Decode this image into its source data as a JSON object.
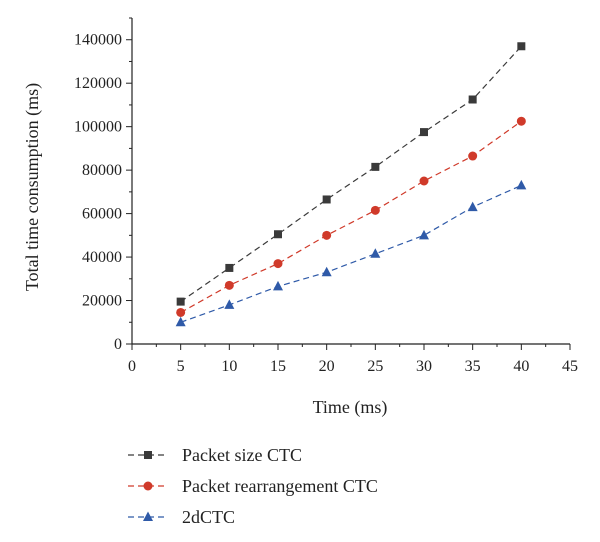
{
  "chart_data": {
    "type": "line",
    "xlabel": "Time (ms)",
    "ylabel": "Total time consumption (ms)",
    "xlim": [
      0,
      45
    ],
    "ylim": [
      0,
      150000
    ],
    "x_ticks": [
      0,
      5,
      10,
      15,
      20,
      25,
      30,
      35,
      40,
      45
    ],
    "y_ticks": [
      0,
      20000,
      40000,
      60000,
      80000,
      100000,
      120000,
      140000
    ],
    "grid": false,
    "legend_position": "bottom",
    "x": [
      5,
      10,
      15,
      20,
      25,
      30,
      35,
      40
    ],
    "series": [
      {
        "name": "Packet size CTC",
        "values": [
          19500,
          35000,
          50500,
          66500,
          81500,
          97500,
          112500,
          137000
        ],
        "color": "#3a3a3a",
        "marker": "square"
      },
      {
        "name": "Packet rearrangement CTC",
        "values": [
          14500,
          27000,
          37000,
          50000,
          61500,
          75000,
          86500,
          102500
        ],
        "color": "#d03a2a",
        "marker": "circle"
      },
      {
        "name": "2dCTC",
        "values": [
          10000,
          18000,
          26500,
          33000,
          41500,
          50000,
          63000,
          73000
        ],
        "color": "#2f5aa8",
        "marker": "triangle"
      }
    ]
  }
}
